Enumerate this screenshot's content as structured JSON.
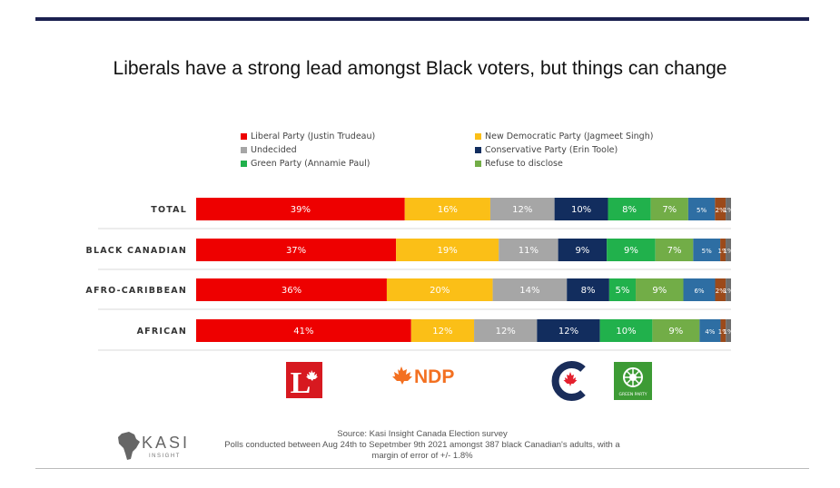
{
  "title": "Liberals have a strong lead amongst Black voters, but things can change",
  "colors": {
    "liberal": "#ee0000",
    "ndp": "#fbbf17",
    "undecided": "#a6a6a6",
    "conservative": "#122d5e",
    "green": "#21b14c",
    "refuse": "#72ad47",
    "other1": "#2e6ea3",
    "other2": "#9c4a1a",
    "other3": "#6d6d6d",
    "title_rule": "#1c2150"
  },
  "chart_data": {
    "type": "bar",
    "orientation": "horizontal",
    "stacked": true,
    "categories": [
      "TOTAL",
      "BLACK CANADIAN",
      "AFRO-CARIBBEAN",
      "AFRICAN"
    ],
    "series": [
      {
        "name": "Liberal Party (Justin Trudeau)",
        "color": "#ee0000",
        "values": [
          39,
          37,
          36,
          41
        ],
        "labels": [
          "39%",
          "37%",
          "36%",
          "41%"
        ]
      },
      {
        "name": "New Democratic Party (Jagmeet Singh)",
        "color": "#fbbf17",
        "values": [
          16,
          19,
          20,
          12
        ],
        "labels": [
          "16%",
          "19%",
          "20%",
          "12%"
        ]
      },
      {
        "name": "Undecided",
        "color": "#a6a6a6",
        "values": [
          12,
          11,
          14,
          12
        ],
        "labels": [
          "12%",
          "11%",
          "14%",
          "12%"
        ]
      },
      {
        "name": "Conservative Party (Erin Toole)",
        "color": "#122d5e",
        "values": [
          10,
          9,
          8,
          12
        ],
        "labels": [
          "10%",
          "9%",
          "8%",
          "12%"
        ]
      },
      {
        "name": "Green Party (Annamie Paul)",
        "color": "#21b14c",
        "values": [
          8,
          9,
          5,
          10
        ],
        "labels": [
          "8%",
          "9%",
          "5%",
          "10%"
        ]
      },
      {
        "name": "Refuse to disclose",
        "color": "#72ad47",
        "values": [
          7,
          7,
          9,
          9
        ],
        "labels": [
          "7%",
          "7%",
          "9%",
          "9%"
        ]
      },
      {
        "name": "",
        "color": "#2e6ea3",
        "values": [
          5,
          5,
          6,
          4
        ],
        "labels": [
          "5%",
          "5%",
          "6%",
          "4%"
        ]
      },
      {
        "name": "",
        "color": "#9c4a1a",
        "values": [
          2,
          1,
          2,
          1
        ],
        "labels": [
          "2%",
          "1%",
          "2%",
          "1%"
        ]
      },
      {
        "name": "",
        "color": "#6d6d6d",
        "values": [
          1,
          1,
          1,
          1
        ],
        "labels": [
          "1%",
          "1%",
          "1%",
          "1%"
        ]
      }
    ],
    "legend_position": "top"
  },
  "logos": {
    "liberal_letter": "L",
    "ndp_text": "NDP",
    "green_caption": "GREEN PARTY",
    "kasi_name": "KASI",
    "kasi_sub": "INSIGHT"
  },
  "source": {
    "line1": "Source: Kasi Insight Canada Election survey",
    "line2": "Polls conducted between Aug 24th to Sepetmber 9th 2021 amongst 387 black Canadian's adults, with a",
    "line3": "margin of error of +/- 1.8%"
  }
}
